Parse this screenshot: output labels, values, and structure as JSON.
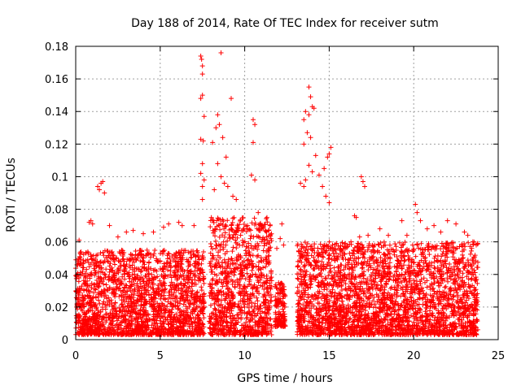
{
  "chart_data": {
    "type": "scatter",
    "title": "Day 188 of 2014, Rate Of TEC Index for receiver sutm",
    "xlabel": "GPS time / hours",
    "ylabel": "ROTI / TECUs",
    "xlim": [
      0,
      25
    ],
    "ylim": [
      0,
      0.18
    ],
    "x_ticks": [
      "0",
      "5",
      "10",
      "15",
      "20",
      "25"
    ],
    "y_ticks": [
      "0",
      "0.02",
      "0.04",
      "0.06",
      "0.08",
      "0.1",
      "0.12",
      "0.14",
      "0.16",
      "0.18"
    ],
    "grid": true,
    "marker": "plus",
    "color": "#ff0000",
    "series": [
      {
        "values": [
          [
            1.3,
            0.094
          ],
          [
            1.5,
            0.096
          ],
          [
            1.6,
            0.097
          ],
          [
            1.7,
            0.09
          ],
          [
            1.4,
            0.092
          ],
          [
            0.8,
            0.072
          ],
          [
            0.9,
            0.073
          ],
          [
            1.0,
            0.071
          ],
          [
            0.2,
            0.061
          ],
          [
            2.0,
            0.07
          ],
          [
            2.5,
            0.063
          ],
          [
            3.0,
            0.066
          ],
          [
            3.4,
            0.067
          ],
          [
            4.0,
            0.065
          ],
          [
            4.6,
            0.066
          ],
          [
            5.2,
            0.069
          ],
          [
            5.5,
            0.071
          ],
          [
            6.1,
            0.072
          ],
          [
            6.3,
            0.07
          ],
          [
            7.0,
            0.07
          ],
          [
            7.4,
            0.174
          ],
          [
            7.45,
            0.172
          ],
          [
            7.5,
            0.168
          ],
          [
            7.5,
            0.163
          ],
          [
            7.4,
            0.148
          ],
          [
            7.5,
            0.15
          ],
          [
            7.6,
            0.137
          ],
          [
            7.4,
            0.123
          ],
          [
            7.55,
            0.122
          ],
          [
            7.5,
            0.108
          ],
          [
            7.4,
            0.102
          ],
          [
            7.6,
            0.098
          ],
          [
            7.5,
            0.094
          ],
          [
            7.5,
            0.086
          ],
          [
            8.6,
            0.176
          ],
          [
            8.4,
            0.138
          ],
          [
            8.3,
            0.13
          ],
          [
            8.5,
            0.132
          ],
          [
            8.1,
            0.121
          ],
          [
            8.7,
            0.124
          ],
          [
            8.4,
            0.108
          ],
          [
            8.6,
            0.1
          ],
          [
            8.9,
            0.112
          ],
          [
            8.8,
            0.096
          ],
          [
            9.2,
            0.148
          ],
          [
            9.0,
            0.094
          ],
          [
            9.3,
            0.088
          ],
          [
            8.2,
            0.092
          ],
          [
            9.5,
            0.086
          ],
          [
            10.5,
            0.135
          ],
          [
            10.6,
            0.132
          ],
          [
            10.5,
            0.121
          ],
          [
            10.4,
            0.101
          ],
          [
            10.6,
            0.098
          ],
          [
            10.8,
            0.078
          ],
          [
            11.0,
            0.07
          ],
          [
            11.3,
            0.066
          ],
          [
            12.2,
            0.071
          ],
          [
            12.1,
            0.062
          ],
          [
            12.3,
            0.058
          ],
          [
            11.9,
            0.056
          ],
          [
            13.8,
            0.155
          ],
          [
            13.9,
            0.149
          ],
          [
            13.6,
            0.14
          ],
          [
            13.8,
            0.138
          ],
          [
            14.0,
            0.143
          ],
          [
            14.1,
            0.142
          ],
          [
            13.5,
            0.135
          ],
          [
            13.7,
            0.127
          ],
          [
            13.5,
            0.12
          ],
          [
            13.9,
            0.124
          ],
          [
            14.2,
            0.113
          ],
          [
            13.8,
            0.107
          ],
          [
            14.0,
            0.103
          ],
          [
            13.6,
            0.098
          ],
          [
            13.3,
            0.096
          ],
          [
            13.5,
            0.094
          ],
          [
            14.4,
            0.101
          ],
          [
            14.7,
            0.105
          ],
          [
            14.9,
            0.112
          ],
          [
            15.1,
            0.118
          ],
          [
            15.0,
            0.114
          ],
          [
            14.6,
            0.094
          ],
          [
            14.8,
            0.088
          ],
          [
            15.0,
            0.084
          ],
          [
            16.5,
            0.076
          ],
          [
            16.6,
            0.075
          ],
          [
            16.9,
            0.1
          ],
          [
            17.0,
            0.097
          ],
          [
            17.1,
            0.094
          ],
          [
            16.8,
            0.063
          ],
          [
            17.3,
            0.064
          ],
          [
            18.0,
            0.068
          ],
          [
            18.5,
            0.064
          ],
          [
            19.3,
            0.073
          ],
          [
            19.6,
            0.064
          ],
          [
            20.1,
            0.083
          ],
          [
            20.2,
            0.078
          ],
          [
            20.4,
            0.073
          ],
          [
            20.8,
            0.068
          ],
          [
            21.2,
            0.07
          ],
          [
            21.6,
            0.066
          ],
          [
            22.0,
            0.073
          ],
          [
            22.5,
            0.071
          ],
          [
            23.0,
            0.066
          ],
          [
            23.2,
            0.064
          ],
          [
            23.5,
            0.06
          ],
          [
            23.7,
            0.058
          ]
        ]
      }
    ],
    "dense_bands": [
      {
        "x": [
          0.0,
          7.6
        ],
        "y_base": [
          0.003,
          0.055
        ]
      },
      {
        "x": [
          7.9,
          11.6
        ],
        "y_base": [
          0.003,
          0.075
        ]
      },
      {
        "x": [
          11.8,
          12.4
        ],
        "y_base": [
          0.008,
          0.035
        ]
      },
      {
        "x": [
          13.1,
          23.8
        ],
        "y_base": [
          0.003,
          0.06
        ]
      }
    ]
  }
}
